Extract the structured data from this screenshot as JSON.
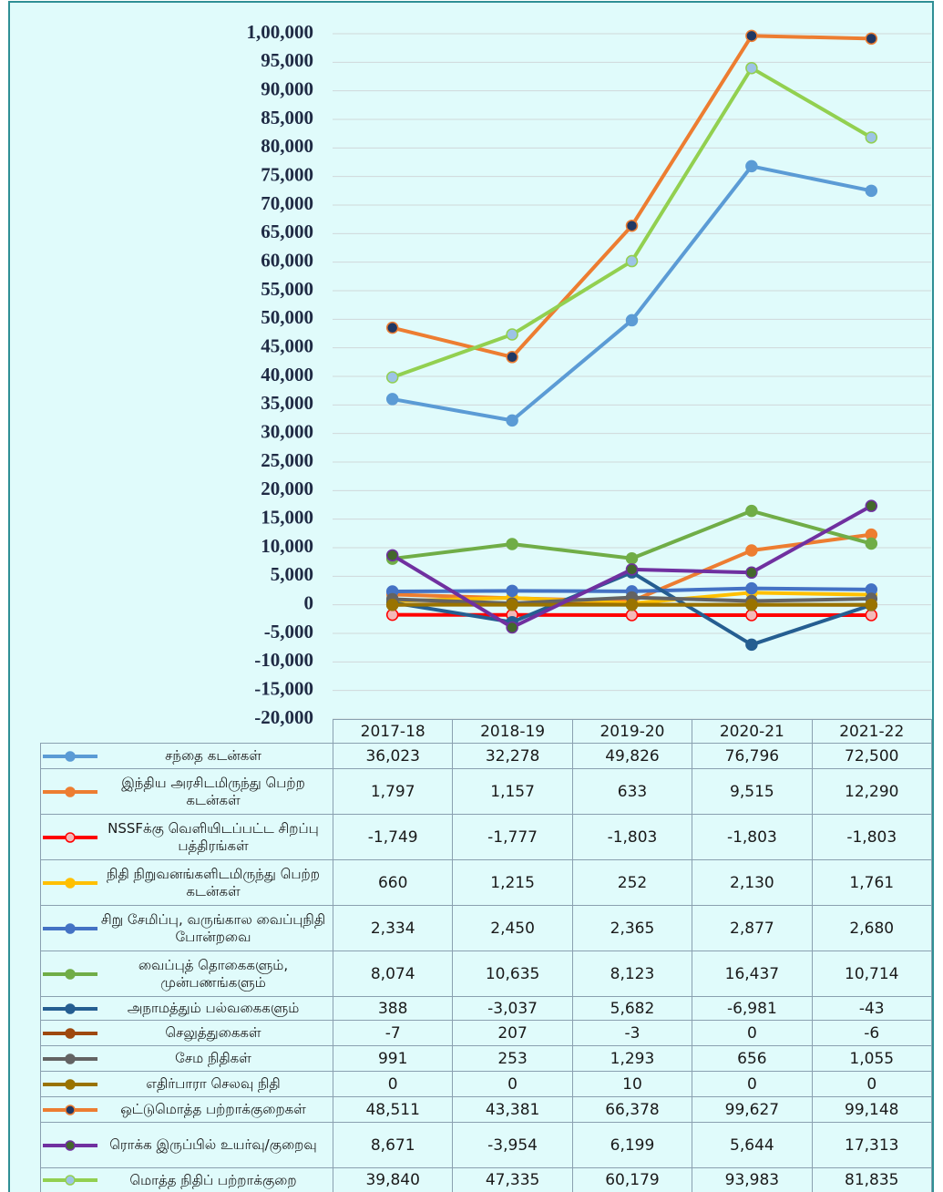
{
  "chart_data": {
    "type": "line",
    "categories": [
      "2017-18",
      "2018-19",
      "2019-20",
      "2020-21",
      "2021-22"
    ],
    "ylim": [
      -20000,
      100000
    ],
    "yticks": [
      {
        "value": -20000,
        "label": "-20,000"
      },
      {
        "value": -15000,
        "label": "-15,000"
      },
      {
        "value": -10000,
        "label": "-10,000"
      },
      {
        "value": -5000,
        "label": "-5,000"
      },
      0,
      {
        "value": 5000,
        "label": "5,000"
      },
      {
        "value": 10000,
        "label": "10,000"
      },
      {
        "value": 15000,
        "label": "15,000"
      },
      {
        "value": 20000,
        "label": "20,000"
      },
      {
        "value": 25000,
        "label": "25,000"
      },
      {
        "value": 30000,
        "label": "30,000"
      },
      {
        "value": 35000,
        "label": "35,000"
      },
      {
        "value": 40000,
        "label": "40,000"
      },
      {
        "value": 45000,
        "label": "45,000"
      },
      {
        "value": 50000,
        "label": "50,000"
      },
      {
        "value": 55000,
        "label": "55,000"
      },
      {
        "value": 60000,
        "label": "60,000"
      },
      {
        "value": 65000,
        "label": "65,000"
      },
      {
        "value": 70000,
        "label": "70,000"
      },
      {
        "value": 75000,
        "label": "75,000"
      },
      {
        "value": 80000,
        "label": "80,000"
      },
      {
        "value": 85000,
        "label": "85,000"
      },
      {
        "value": 90000,
        "label": "90,000"
      },
      {
        "value": 95000,
        "label": "95,000"
      },
      {
        "value": 100000,
        "label": "1,00,000"
      }
    ],
    "grid": true,
    "series": [
      {
        "name": "சந்தை கடன்கள்",
        "color": "#5b9bd5",
        "marker_color": "#5b9bd5",
        "values": [
          36023,
          32278,
          49826,
          76796,
          72500
        ],
        "value_labels": [
          "36,023",
          "32,278",
          "49,826",
          "76,796",
          "72,500"
        ]
      },
      {
        "name": "இந்திய அரசிடமிருந்து பெற்ற கடன்கள்",
        "color": "#ed7d31",
        "marker_color": "#ed7d31",
        "values": [
          1797,
          1157,
          633,
          9515,
          12290
        ],
        "value_labels": [
          "1,797",
          "1,157",
          "633",
          "9,515",
          "12,290"
        ]
      },
      {
        "name": "NSSFக்கு வெளியிடப்பட்ட சிறப்பு பத்திரங்கள்",
        "color": "#ff0000",
        "marker_color": "#f4b8b8",
        "values": [
          -1749,
          -1777,
          -1803,
          -1803,
          -1803
        ],
        "value_labels": [
          "-1,749",
          "-1,777",
          "-1,803",
          "-1,803",
          "-1,803"
        ]
      },
      {
        "name": "நிதி நிறுவனங்களிடமிருந்து பெற்ற கடன்கள்",
        "color": "#ffc000",
        "marker_color": "#ffc000",
        "values": [
          660,
          1215,
          252,
          2130,
          1761
        ],
        "value_labels": [
          "660",
          "1,215",
          "252",
          "2,130",
          "1,761"
        ]
      },
      {
        "name": "சிறு சேமிப்பு, வருங்கால வைப்புநிதி போன்றவை",
        "color": "#4472c4",
        "marker_color": "#4472c4",
        "values": [
          2334,
          2450,
          2365,
          2877,
          2680
        ],
        "value_labels": [
          "2,334",
          "2,450",
          "2,365",
          "2,877",
          "2,680"
        ]
      },
      {
        "name": "வைப்புத் தொகைகளும், முன்பணங்களும்",
        "color": "#70ad47",
        "marker_color": "#70ad47",
        "values": [
          8074,
          10635,
          8123,
          16437,
          10714
        ],
        "value_labels": [
          "8,074",
          "10,635",
          "8,123",
          "16,437",
          "10,714"
        ]
      },
      {
        "name": "அநாமத்தும் பல்வகைகளும்",
        "color": "#255e91",
        "marker_color": "#255e91",
        "values": [
          388,
          -3037,
          5682,
          -6981,
          -43
        ],
        "value_labels": [
          "388",
          "-3,037",
          "5,682",
          "-6,981",
          "-43"
        ]
      },
      {
        "name": "செலுத்துகைகள்",
        "color": "#9e480e",
        "marker_color": "#9e480e",
        "values": [
          -7,
          207,
          -3,
          0,
          -6
        ],
        "value_labels": [
          "-7",
          "207",
          "-3",
          "0",
          "-6"
        ]
      },
      {
        "name": "சேம நிதிகள்",
        "color": "#636363",
        "marker_color": "#636363",
        "values": [
          991,
          253,
          1293,
          656,
          1055
        ],
        "value_labels": [
          "991",
          "253",
          "1,293",
          "656",
          "1,055"
        ]
      },
      {
        "name": "எதிர்பாரா செலவு நிதி",
        "color": "#997300",
        "marker_color": "#997300",
        "values": [
          0,
          0,
          10,
          0,
          0
        ],
        "value_labels": [
          "0",
          "0",
          "10",
          "0",
          "0"
        ]
      },
      {
        "name": "ஒட்டுமொத்த பற்றாக்குறைகள்",
        "color": "#ed7d31",
        "marker_color": "#203864",
        "values": [
          48511,
          43381,
          66378,
          99627,
          99148
        ],
        "value_labels": [
          "48,511",
          "43,381",
          "66,378",
          "99,627",
          "99,148"
        ]
      },
      {
        "name": "ரொக்க இருப்பில் உயர்வு/குறைவு",
        "color": "#7030a0",
        "marker_color": "#43682b",
        "values": [
          8671,
          -3954,
          6199,
          5644,
          17313
        ],
        "value_labels": [
          "8,671",
          "-3,954",
          "6,199",
          "5,644",
          "17,313"
        ]
      },
      {
        "name": "மொத்த நிதிப் பற்றாக்குறை",
        "color": "#92d050",
        "marker_color": "#9dc3e6",
        "values": [
          39840,
          47335,
          60179,
          93983,
          81835
        ],
        "value_labels": [
          "39,840",
          "47,335",
          "60,179",
          "93,983",
          "81,835"
        ]
      }
    ]
  }
}
